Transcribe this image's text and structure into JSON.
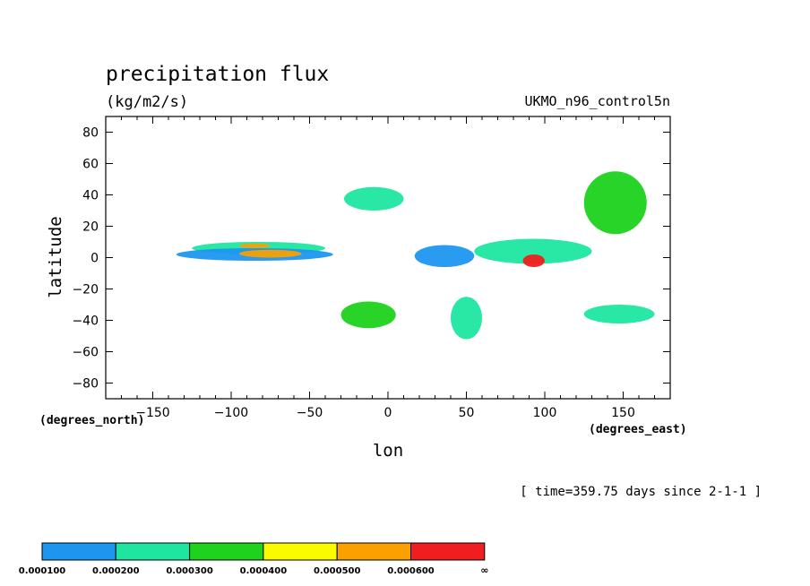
{
  "chart_data": {
    "type": "heatmap",
    "title": "precipitation flux",
    "units": "(kg/m2/s)",
    "dataset": "UKMO_n96_control5n",
    "xlabel": "lon",
    "ylabel": "latitude",
    "x_units": "(degrees_east)",
    "y_units": "(degrees_north)",
    "time_label": "[ time=359.75 days since 2-1-1 ]",
    "xlim": [
      -180,
      180
    ],
    "ylim": [
      -90,
      90
    ],
    "x_ticks": [
      -150,
      -100,
      -50,
      0,
      50,
      100,
      150
    ],
    "y_ticks": [
      -80,
      -60,
      -40,
      -20,
      0,
      20,
      40,
      60,
      80
    ],
    "x_tick_labels": [
      "−150",
      "−100",
      "−50",
      "0",
      "50",
      "100",
      "150"
    ],
    "y_tick_labels": [
      "−80",
      "−60",
      "−40",
      "−20",
      "0",
      "20",
      "40",
      "60",
      "80"
    ],
    "legend": {
      "colors": [
        "#1e96f0",
        "#1ee6a0",
        "#1ed21e",
        "#fafa00",
        "#faa000",
        "#f01e1e"
      ],
      "labels": [
        "0.000100",
        "0.000200",
        "0.000300",
        "0.000400",
        "0.000500",
        "0.000600",
        "∞"
      ]
    },
    "features": [
      {
        "name": "north ITCZ band (central Pacific)",
        "lon": [
          -125,
          -40
        ],
        "lat": [
          2,
          10
        ],
        "level": 2
      },
      {
        "name": "equatorial Pacific core",
        "lon": [
          -135,
          -35
        ],
        "lat": [
          -2,
          6
        ],
        "level": 1
      },
      {
        "name": "Pacific rain core",
        "lon": [
          -95,
          -55
        ],
        "lat": [
          0,
          5
        ],
        "level": 5
      },
      {
        "name": "Pacific rain core strip",
        "lon": [
          -95,
          -75
        ],
        "lat": [
          6,
          9
        ],
        "level": 5
      },
      {
        "name": "Indian Ocean convection",
        "lon": [
          55,
          130
        ],
        "lat": [
          -4,
          12
        ],
        "level": 2
      },
      {
        "name": "Indian Ocean intense core",
        "lon": [
          86,
          100
        ],
        "lat": [
          -6,
          2
        ],
        "level": 6
      },
      {
        "name": "Africa / Atlantic band",
        "lon": [
          17,
          55
        ],
        "lat": [
          -6,
          8
        ],
        "level": 1
      },
      {
        "name": "west Pacific storm track arc",
        "lon": [
          125,
          165
        ],
        "lat": [
          15,
          55
        ],
        "level": 3
      },
      {
        "name": "North Atlantic storm track",
        "lon": [
          -28,
          10
        ],
        "lat": [
          30,
          45
        ],
        "level": 2
      },
      {
        "name": "South Atlantic convergence zone",
        "lon": [
          -30,
          5
        ],
        "lat": [
          -45,
          -28
        ],
        "level": 3
      },
      {
        "name": "South Indian Ocean band",
        "lon": [
          40,
          60
        ],
        "lat": [
          -52,
          -25
        ],
        "level": 2
      },
      {
        "name": "South Pacific band",
        "lon": [
          125,
          170
        ],
        "lat": [
          -42,
          -30
        ],
        "level": 2
      }
    ]
  }
}
